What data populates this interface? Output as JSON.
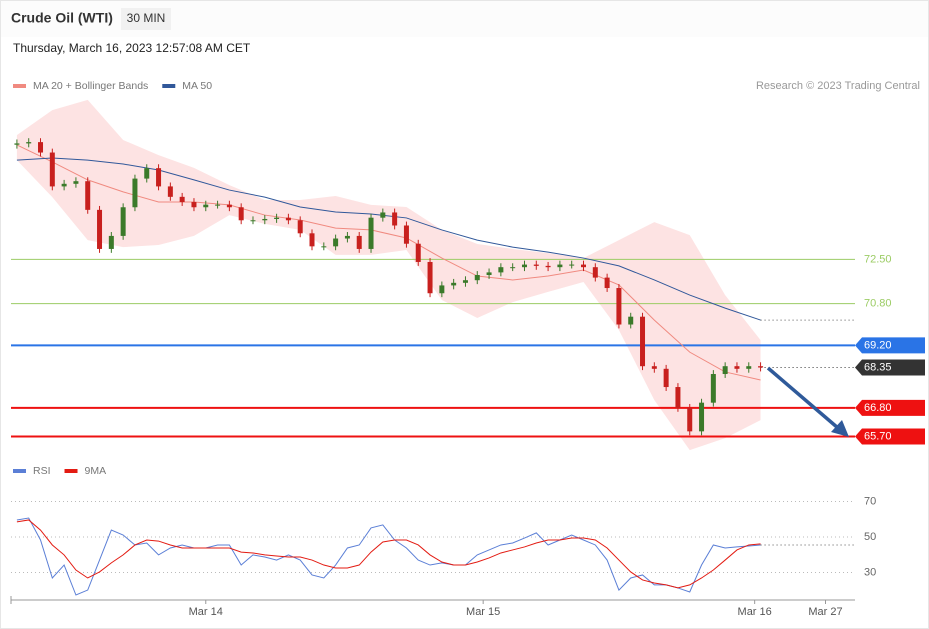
{
  "header": {
    "title": "Crude Oil (WTI)",
    "interval": "30 MIN",
    "date": "Thursday, March 16, 2023 12:57:08 AM CET",
    "credit": "Research © 2023 Trading Central"
  },
  "chart_data": [
    {
      "type": "candlestick",
      "up_color": "#3b7a2a",
      "down_color": "#c8201e",
      "ylim": [
        64.8,
        79
      ],
      "open": [
        76.9,
        76.95,
        77.0,
        76.6,
        75.3,
        75.4,
        75.5,
        74.4,
        72.9,
        73.4,
        74.5,
        75.6,
        76.0,
        75.3,
        74.9,
        74.7,
        74.5,
        74.6,
        74.6,
        74.5,
        74.0,
        74.0,
        74.05,
        74.1,
        74.0,
        73.5,
        73.0,
        73.0,
        73.3,
        73.4,
        72.9,
        74.1,
        74.3,
        73.8,
        73.1,
        72.4,
        71.2,
        71.5,
        71.6,
        71.7,
        71.9,
        72.0,
        72.2,
        72.2,
        72.3,
        72.25,
        72.2,
        72.3,
        72.3,
        72.2,
        71.8,
        71.4,
        70.0,
        70.3,
        68.4,
        68.3,
        67.6,
        66.8,
        65.9,
        67.0,
        68.1,
        68.4,
        68.3,
        68.4
      ],
      "high": [
        77.1,
        77.15,
        77.15,
        76.75,
        75.55,
        75.65,
        75.65,
        74.55,
        73.55,
        74.65,
        75.75,
        76.15,
        76.15,
        75.45,
        75.05,
        74.85,
        74.75,
        74.75,
        74.75,
        74.65,
        74.15,
        74.2,
        74.25,
        74.25,
        74.15,
        73.65,
        73.15,
        73.45,
        73.55,
        73.55,
        74.25,
        74.45,
        74.45,
        73.95,
        73.25,
        72.55,
        71.65,
        71.75,
        71.85,
        72.05,
        72.15,
        72.35,
        72.35,
        72.45,
        72.45,
        72.4,
        72.45,
        72.45,
        72.45,
        72.35,
        71.95,
        71.55,
        70.45,
        70.45,
        68.55,
        68.45,
        67.75,
        66.95,
        67.15,
        68.25,
        68.55,
        68.55,
        68.55,
        68.55
      ],
      "low": [
        76.75,
        76.8,
        76.45,
        75.15,
        75.15,
        75.25,
        74.25,
        72.75,
        72.75,
        73.25,
        74.35,
        75.45,
        75.15,
        74.75,
        74.55,
        74.35,
        74.35,
        74.45,
        74.35,
        73.85,
        73.85,
        73.85,
        73.9,
        73.85,
        73.35,
        72.85,
        72.85,
        72.85,
        73.15,
        72.75,
        72.75,
        73.95,
        73.65,
        72.95,
        72.25,
        71.05,
        71.05,
        71.35,
        71.45,
        71.55,
        71.75,
        71.85,
        72.05,
        72.05,
        72.1,
        72.05,
        72.05,
        72.15,
        72.05,
        71.65,
        71.25,
        69.85,
        69.85,
        68.25,
        68.15,
        67.45,
        66.65,
        65.75,
        65.75,
        66.85,
        67.95,
        68.15,
        68.15,
        68.2
      ],
      "close": [
        76.95,
        77.0,
        76.6,
        75.3,
        75.4,
        75.5,
        74.4,
        72.9,
        73.4,
        74.5,
        75.6,
        76.0,
        75.3,
        74.9,
        74.7,
        74.5,
        74.6,
        74.6,
        74.5,
        74.0,
        74.0,
        74.05,
        74.1,
        74.0,
        73.5,
        73.0,
        73.0,
        73.3,
        73.4,
        72.9,
        74.1,
        74.3,
        73.8,
        73.1,
        72.4,
        71.2,
        71.5,
        71.6,
        71.7,
        71.9,
        72.0,
        72.2,
        72.2,
        72.3,
        72.25,
        72.2,
        72.3,
        72.3,
        72.2,
        71.8,
        71.4,
        70.0,
        70.3,
        68.4,
        68.3,
        67.6,
        66.8,
        65.9,
        67.0,
        68.1,
        68.4,
        68.3,
        68.4,
        68.35
      ],
      "overlay_x": [
        0,
        3,
        6,
        9,
        12,
        15,
        18,
        21,
        24,
        27,
        30,
        33,
        36,
        39,
        42,
        45,
        48,
        51,
        54,
        57,
        60,
        63
      ],
      "bands": {
        "name": "MA 20 + Bollinger Bands",
        "color": "#f08a80",
        "fill": "#fde3e3",
        "values": [
          76.89,
          76.24,
          75.55,
          75.09,
          74.7,
          74.7,
          74.59,
          74.2,
          74.01,
          73.7,
          73.63,
          73.32,
          72.55,
          71.86,
          71.71,
          71.86,
          72.09,
          71.52,
          70.17,
          68.94,
          68.18,
          67.87
        ],
        "upper": [
          77.27,
          78.23,
          78.62,
          77.08,
          76.5,
          76.01,
          75.35,
          74.78,
          74.78,
          74.93,
          74.59,
          74.51,
          73.63,
          73.09,
          72.9,
          72.74,
          72.55,
          73.24,
          73.93,
          73.43,
          71.13,
          69.4
        ],
        "lower": [
          76.31,
          74.89,
          73.24,
          72.97,
          73.05,
          73.4,
          74.2,
          73.86,
          73.63,
          72.67,
          72.67,
          72.86,
          70.94,
          70.25,
          70.86,
          71.25,
          71.63,
          69.79,
          67.1,
          65.18,
          65.64,
          66.33
        ]
      },
      "ma50": {
        "name": "MA 50",
        "color": "#31589a",
        "values": [
          76.31,
          76.39,
          76.31,
          76.16,
          75.93,
          75.55,
          75.16,
          74.89,
          74.51,
          74.32,
          74.24,
          74.09,
          73.63,
          73.24,
          72.97,
          72.78,
          72.55,
          72.25,
          71.71,
          71.13,
          70.63,
          70.17
        ]
      },
      "levels": [
        {
          "value": 72.5,
          "label": "72.50",
          "color": "#9ccc65",
          "tagged": false,
          "line": true
        },
        {
          "value": 70.8,
          "label": "70.80",
          "color": "#9ccc65",
          "tagged": false,
          "line": true
        },
        {
          "value": 69.2,
          "label": "69.20",
          "color": "#2a74e6",
          "tagged": true,
          "line": true
        },
        {
          "value": 68.35,
          "label": "68.35",
          "color": "#333333",
          "tagged": true,
          "line": false
        },
        {
          "value": 66.8,
          "label": "66.80",
          "color": "#ee1111",
          "tagged": true,
          "line": true
        },
        {
          "value": 65.7,
          "label": "65.70",
          "color": "#ee1111",
          "tagged": true,
          "line": true
        }
      ]
    },
    {
      "type": "line",
      "ylim": [
        15,
        80
      ],
      "yticks": [
        30,
        50,
        70
      ],
      "grid": true,
      "xlim": [
        -0.5,
        71
      ],
      "xticks": [
        {
          "value": 16,
          "label": "Mar 14"
        },
        {
          "value": 39.5,
          "label": "Mar 15"
        },
        {
          "value": 62.5,
          "label": "Mar 16"
        },
        {
          "value": 68.5,
          "label": "Mar 27"
        }
      ],
      "series": [
        {
          "name": "RSI",
          "color": "#5b7fd6",
          "values": [
            59.6,
            60.7,
            48.3,
            26.9,
            34.2,
            17.3,
            20.1,
            37.0,
            53.9,
            51.1,
            45.5,
            46.6,
            39.9,
            43.8,
            45.5,
            43.8,
            43.8,
            45.5,
            45.5,
            34.2,
            39.9,
            38.7,
            37.0,
            39.9,
            37.0,
            28.6,
            26.9,
            34.2,
            43.8,
            45.5,
            55.1,
            56.8,
            48.3,
            43.8,
            37.0,
            34.2,
            35.4,
            34.2,
            34.2,
            39.9,
            42.7,
            45.5,
            46.6,
            49.4,
            52.3,
            45.5,
            48.3,
            51.1,
            48.3,
            45.5,
            37.0,
            20.1,
            26.9,
            28.6,
            23.0,
            23.0,
            21.3,
            19.0,
            34.2,
            45.5,
            43.8,
            44.4,
            44.9,
            45.5
          ]
        },
        {
          "name": "9MA",
          "color": "#e31b12",
          "values": [
            58.5,
            59.6,
            53.9,
            45.5,
            39.9,
            31.4,
            26.9,
            30.3,
            35.4,
            39.9,
            45.5,
            48.3,
            47.7,
            45.5,
            43.8,
            43.8,
            43.8,
            43.8,
            43.8,
            41.5,
            41.0,
            39.9,
            39.3,
            38.7,
            38.7,
            37.0,
            34.2,
            32.5,
            32.5,
            34.2,
            41.5,
            47.2,
            48.3,
            48.3,
            45.5,
            39.9,
            35.9,
            34.2,
            34.2,
            35.9,
            38.2,
            41.0,
            42.7,
            44.4,
            46.6,
            48.3,
            48.3,
            49.4,
            49.4,
            48.3,
            43.8,
            37.0,
            30.3,
            25.8,
            24.1,
            23.0,
            21.3,
            23.0,
            26.9,
            31.4,
            37.0,
            42.7,
            45.5,
            46.1
          ]
        }
      ]
    }
  ]
}
